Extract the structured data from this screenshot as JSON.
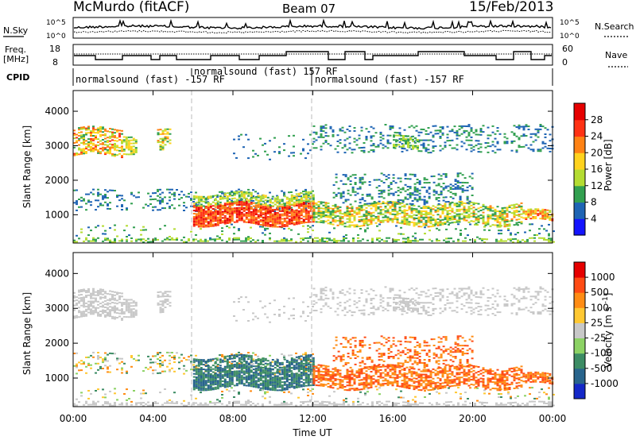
{
  "header": {
    "station": "McMurdo (fitACF)",
    "beam": "Beam 07",
    "date": "15/Feb/2013"
  },
  "summary_panels": {
    "nsky_label": "N.Sky",
    "nsky_ticks": [
      "10^5",
      "10^0"
    ],
    "nsearch_label": "N.Search",
    "nsearch_ticks": [
      "10^5",
      "10^0"
    ],
    "freq_label": "Freq.",
    "freq_unit": "[MHz]",
    "freq_ticks": [
      "18",
      "8"
    ],
    "nave_label": "Nave",
    "nave_ticks": [
      "60",
      "0"
    ],
    "cpid_label": "CPID",
    "cpid_segments": [
      "normalsound (fast) -157 RF",
      "normalsound (fast) 157 RF",
      "normalsound (fast) -157 RF"
    ]
  },
  "chart_data": [
    {
      "type": "heatmap",
      "name": "power-panel",
      "ylabel": "Slant Range [km]",
      "yticks": [
        "1000",
        "2000",
        "3000",
        "4000"
      ],
      "ylim": [
        180,
        4600
      ],
      "xticks": [
        "00:00",
        "04:00",
        "08:00",
        "12:00",
        "16:00",
        "20:00",
        "00:00"
      ],
      "xlim_hours": [
        0,
        24
      ],
      "colorbar": {
        "label": "Power [dB]",
        "ticks": [
          "4",
          "8",
          "12",
          "16",
          "20",
          "24",
          "28"
        ],
        "colors": [
          "#1414ff",
          "#1e64b4",
          "#32a050",
          "#b4dc32",
          "#ffd21e",
          "#ff8214",
          "#ff3214",
          "#e60000"
        ]
      }
    },
    {
      "type": "heatmap",
      "name": "velocity-panel",
      "ylabel": "Slant Range [km]",
      "yticks": [
        "1000",
        "2000",
        "3000",
        "4000"
      ],
      "ylim": [
        180,
        4600
      ],
      "xticks": [
        "00:00",
        "04:00",
        "08:00",
        "12:00",
        "16:00",
        "20:00",
        "00:00"
      ],
      "xlabel": "Time UT",
      "xlim_hours": [
        0,
        24
      ],
      "colorbar": {
        "label": "Velocity [m s",
        "label_sup": "-1",
        "label_tail": "]",
        "ticks": [
          "1000",
          "500",
          "100",
          "25",
          "-25",
          "-100",
          "-500",
          "-1000"
        ],
        "colors": [
          "#1428c8",
          "#28648c",
          "#3c8c64",
          "#8cd264",
          "#c8c8c8",
          "#ffc832",
          "#ff8c14",
          "#ff4b14",
          "#e60000"
        ]
      }
    }
  ]
}
